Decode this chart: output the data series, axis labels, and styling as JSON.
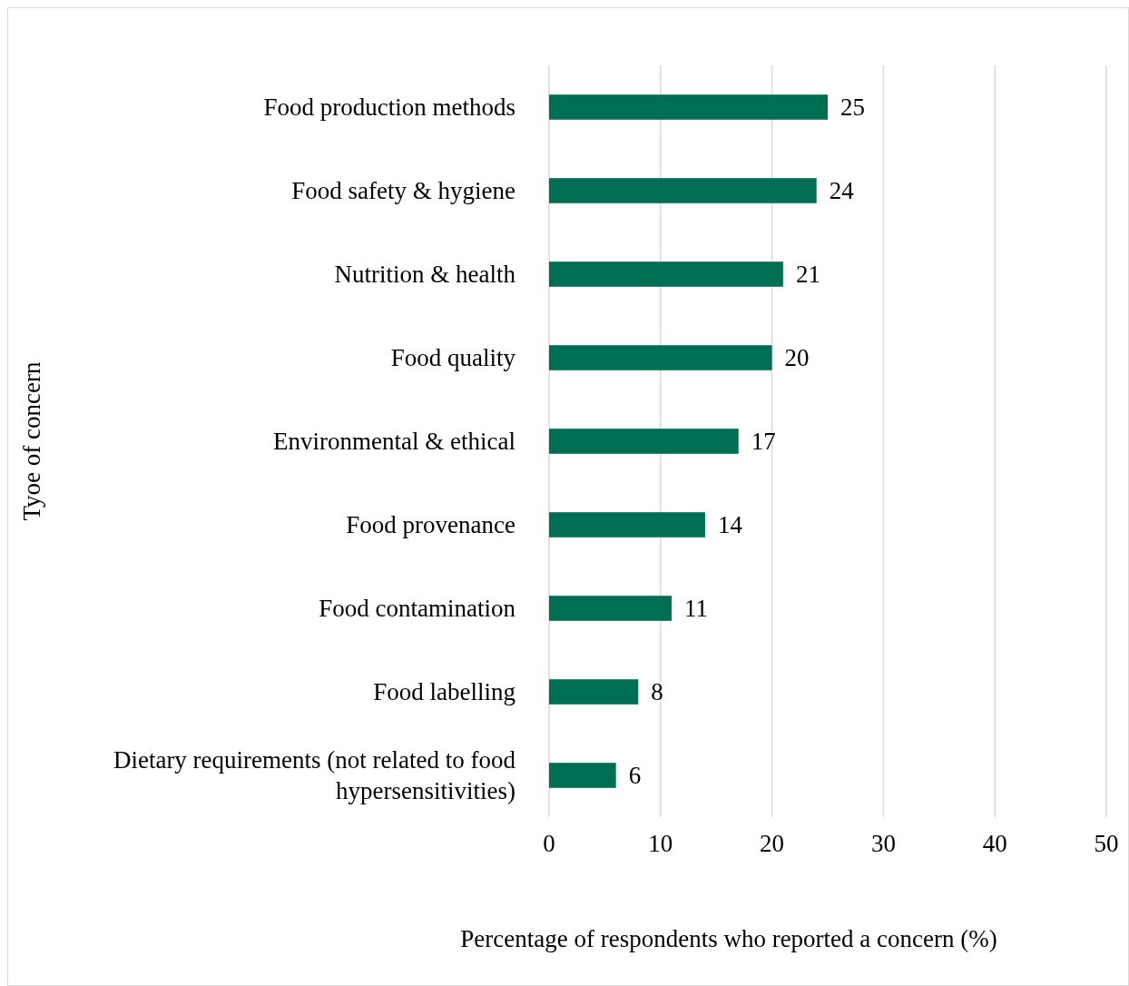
{
  "chart_data": {
    "type": "bar",
    "orientation": "horizontal",
    "xlabel": "Percentage of respondents who reported a concern (%)",
    "ylabel": "Tyoe of concern",
    "categories": [
      "Food production methods",
      "Food safety & hygiene",
      "Nutrition & health",
      "Food quality",
      "Environmental & ethical",
      "Food provenance",
      "Food contamination",
      "Food labelling",
      "Dietary requirements (not related to food hypersensitivities)"
    ],
    "values": [
      25,
      24,
      21,
      20,
      17,
      14,
      11,
      8,
      6
    ],
    "color": "#006f51",
    "data_labels": true,
    "xlim": [
      0,
      50
    ],
    "xticks": [
      0,
      10,
      20,
      30,
      40,
      50
    ],
    "grid": "x"
  }
}
